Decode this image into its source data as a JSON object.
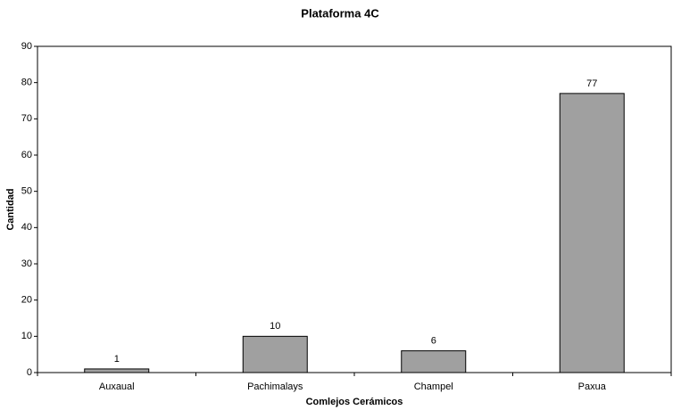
{
  "chart_data": {
    "type": "bar",
    "title": "Plataforma 4C",
    "x_label": "Comlejos Cerámicos",
    "y_label": "Cantidad",
    "categories": [
      "Auxaual",
      "Pachimalays",
      "Champel",
      "Paxua"
    ],
    "values": [
      1,
      10,
      6,
      77
    ],
    "color": "#a0a0a0",
    "ylim": [
      0,
      90
    ],
    "yticks": [
      0,
      10,
      20,
      30,
      40,
      50,
      60,
      70,
      80,
      90
    ],
    "grid": false,
    "data_labels": true
  }
}
